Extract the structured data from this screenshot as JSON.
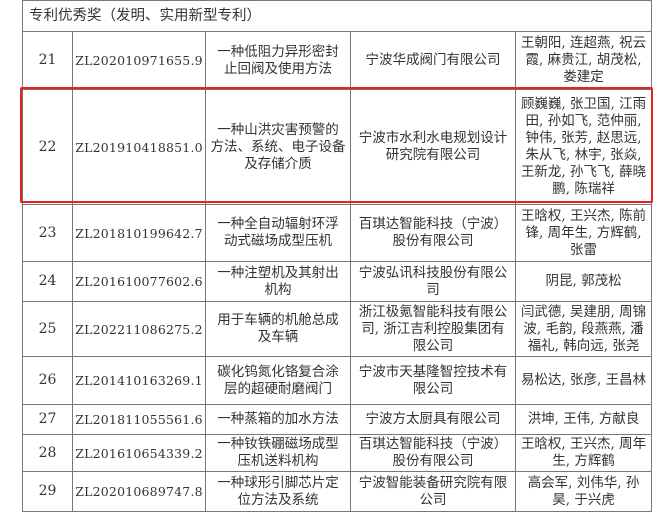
{
  "section_title": "专利优秀奖（发明、实用新型专利）",
  "highlight_color": "#e8201f",
  "rows": [
    {
      "no": "21",
      "patent": "ZL202010971655.9",
      "name": "一种低阻力异形密封\n止回阀及使用方法",
      "company": "宁波华成阀门有限公司",
      "inventors": "王朝阳, 连超燕, 祝云\n霞, 麻贵江, 胡茂松,\n娄建定"
    },
    {
      "no": "22",
      "patent": "ZL201910418851.0",
      "name": "一种山洪灾害预警的\n方法、系统、电子设备\n及存储介质",
      "company": "宁波市水利水电规划设计\n研究院有限公司",
      "inventors": "顾巍巍, 张卫国, 江雨\n田, 孙如飞, 范仲丽,\n钟伟, 张芳, 赵思远,\n朱从飞, 林宇, 张焱,\n王新龙, 孙飞飞, 薛晓\n鹏, 陈瑞祥"
    },
    {
      "no": "23",
      "patent": "ZL201810199642.7",
      "name": "一种全自动辐射环浮\n动式磁场成型压机",
      "company": "百琪达智能科技（宁波）\n股份有限公司",
      "inventors": "王晗权, 王兴杰, 陈前\n锋, 周年生, 方辉鹤,\n张雷"
    },
    {
      "no": "24",
      "patent": "ZL201610077602.6",
      "name": "一种注塑机及其射出\n机构",
      "company": "宁波弘讯科技股份有限公\n司",
      "inventors": "阴昆, 郭茂松"
    },
    {
      "no": "25",
      "patent": "ZL202211086275.2",
      "name": "用于车辆的机舱总成\n及车辆",
      "company": "浙江极氪智能科技有限公\n司, 浙江吉利控股集团有\n限公司",
      "inventors": "闫武德, 吴建朋, 周锦\n波, 毛韵, 段燕燕, 潘\n福礼, 韩向远, 张尧"
    },
    {
      "no": "26",
      "patent": "ZL201410163269.1",
      "name": "碳化钨氮化铬复合涂\n层的超硬耐磨阀门",
      "company": "宁波市天基隆智控技术有\n限公司",
      "inventors": "易松达, 张彦, 王昌林"
    },
    {
      "no": "27",
      "patent": "ZL201811055561.6",
      "name": "一种蒸箱的加水方法",
      "company": "宁波方太厨具有限公司",
      "inventors": "洪坤, 王伟, 方献良"
    },
    {
      "no": "28",
      "patent": "ZL201610654339.2",
      "name": "一种钕铁硼磁场成型\n压机送料机构",
      "company": "百琪达智能科技（宁波）\n股份有限公司",
      "inventors": "王晗权, 王兴杰, 周年\n生, 方辉鹤"
    },
    {
      "no": "29",
      "patent": "ZL202010689747.8",
      "name": "一种球形引脚芯片定\n位方法及系统",
      "company": "宁波智能装备研究院有限\n公司",
      "inventors": "高会军, 刘伟华, 孙\n昊, 于兴虎"
    }
  ]
}
